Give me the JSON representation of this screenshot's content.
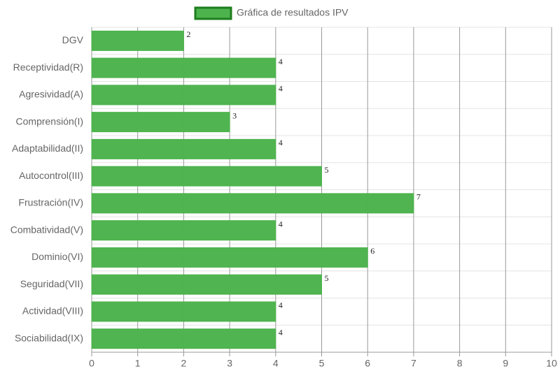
{
  "chart_data": {
    "type": "bar",
    "orientation": "horizontal",
    "categories": [
      "DGV",
      "Receptividad(R)",
      "Agresividad(A)",
      "Comprensión(I)",
      "Adaptabilidad(II)",
      "Autocontrol(III)",
      "Frustración(IV)",
      "Combatividad(V)",
      "Dominio(VI)",
      "Seguridad(VII)",
      "Actividad(VIII)",
      "Sociabilidad(IX)"
    ],
    "series": [
      {
        "name": "Gráfica de resultados IPV",
        "color": "#4db34d",
        "border_color": "#1e7d1e",
        "values": [
          2,
          4,
          4,
          3,
          4,
          5,
          7,
          4,
          6,
          5,
          4,
          4
        ]
      }
    ],
    "xlim": [
      0,
      10
    ],
    "xticks": [
      0,
      1,
      2,
      3,
      4,
      5,
      6,
      7,
      8,
      9,
      10
    ],
    "grid": true,
    "legend": "top"
  }
}
